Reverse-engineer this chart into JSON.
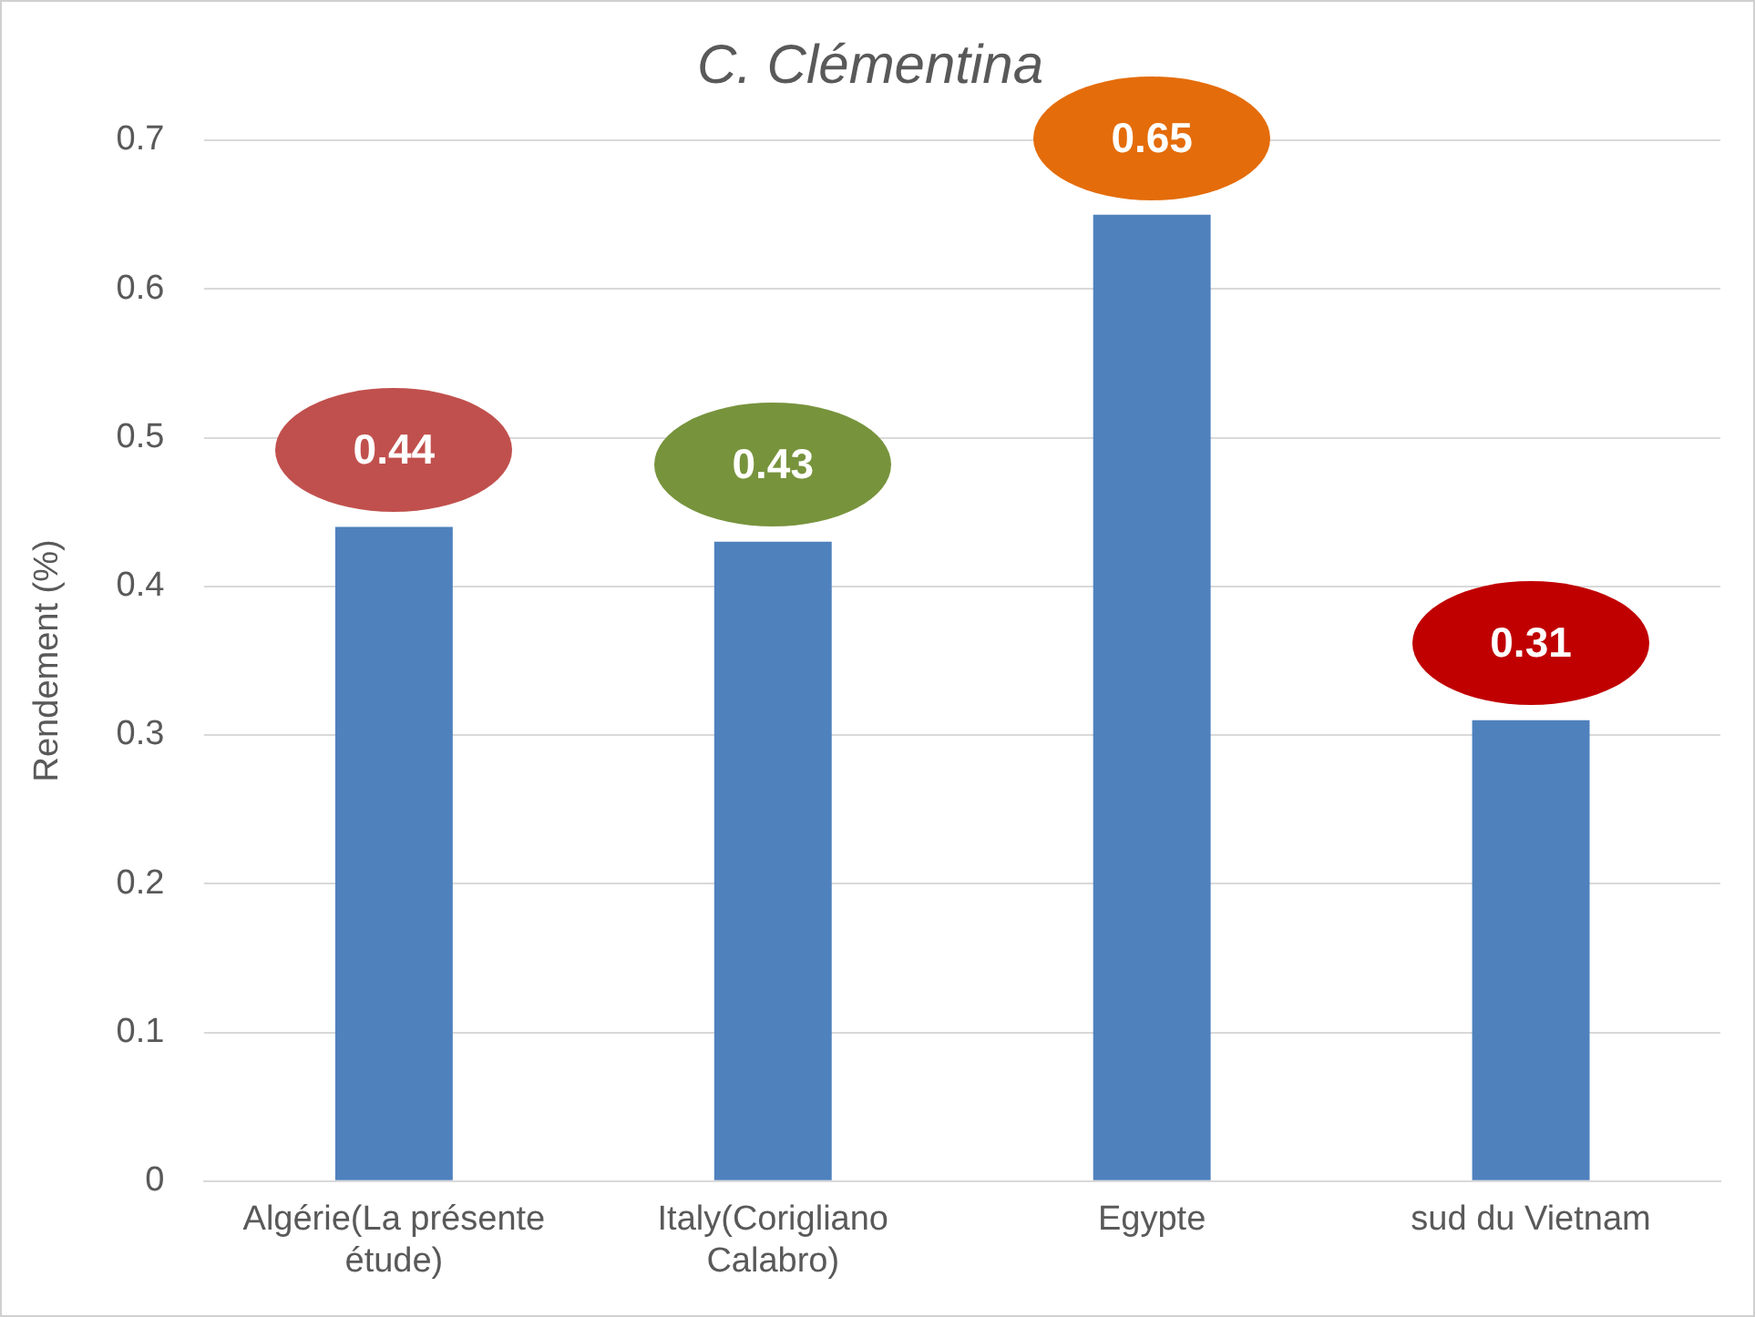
{
  "chart_data": {
    "type": "bar",
    "title": "C. Clémentina",
    "ylabel": "Rendement (%)",
    "categories": [
      "Algérie(La présente étude)",
      "Italy(Corigliano Calabro)",
      "Egypte",
      "sud du Vietnam"
    ],
    "values": [
      0.44,
      0.43,
      0.65,
      0.31
    ],
    "color": "#4f81bd",
    "ylim": [
      0,
      0.7
    ],
    "yticks": [
      0,
      0.1,
      0.2,
      0.3,
      0.4,
      0.5,
      0.6,
      0.7
    ],
    "grid": "y",
    "data_labels": true,
    "legend": false
  }
}
